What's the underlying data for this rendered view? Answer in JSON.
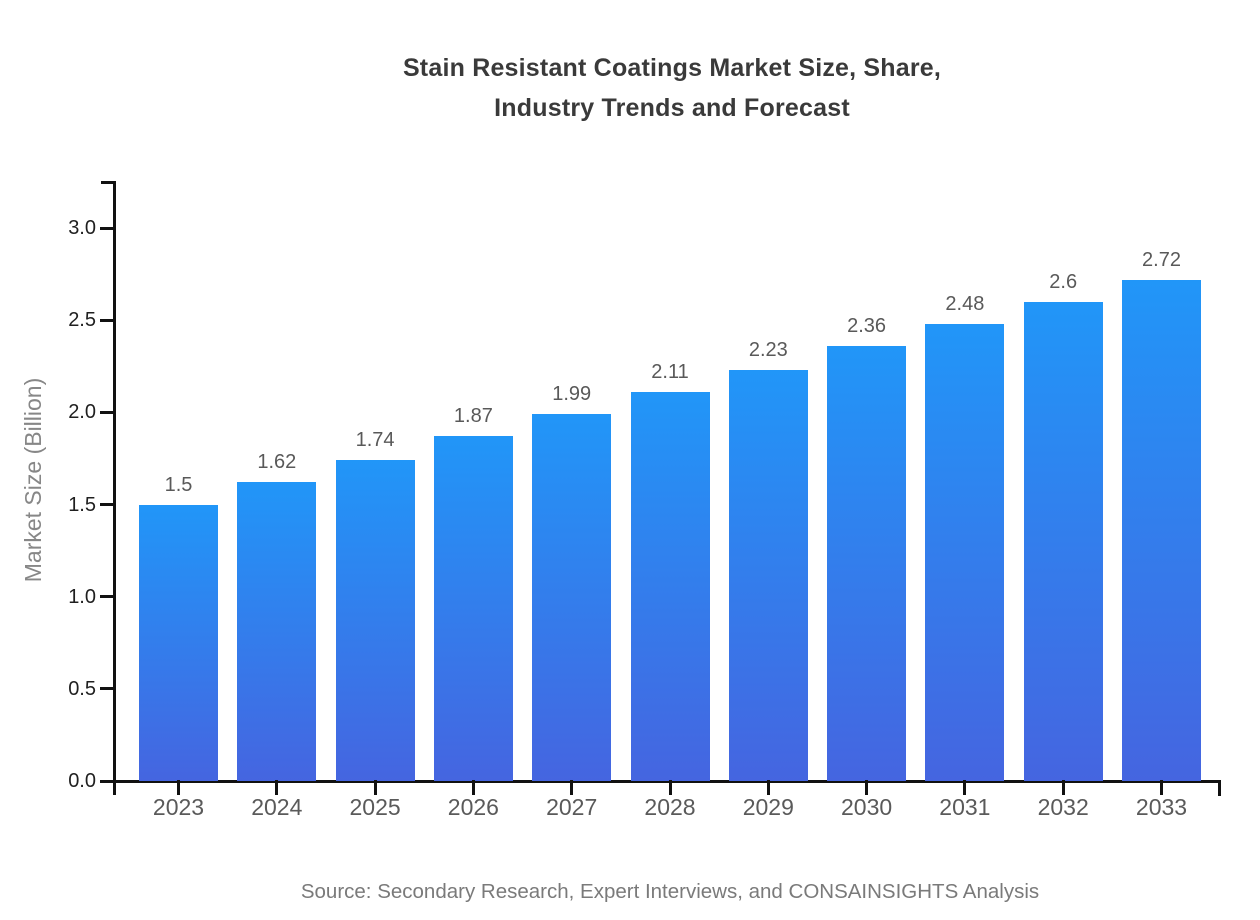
{
  "chart_data": {
    "type": "bar",
    "title": "Stain Resistant Coatings Market Size, Share,\nIndustry Trends and Forecast",
    "ylabel": "Market Size (Billion)",
    "xlabel": "",
    "categories": [
      "2023",
      "2024",
      "2025",
      "2026",
      "2027",
      "2028",
      "2029",
      "2030",
      "2031",
      "2032",
      "2033"
    ],
    "values": [
      1.5,
      1.62,
      1.74,
      1.87,
      1.99,
      2.11,
      2.23,
      2.36,
      2.48,
      2.6,
      2.72
    ],
    "value_labels": [
      "1.5",
      "1.62",
      "1.74",
      "1.87",
      "1.99",
      "2.11",
      "2.23",
      "2.36",
      "2.48",
      "2.6",
      "2.72"
    ],
    "ylim": [
      0,
      3.25
    ],
    "yticks": [
      0,
      0.5,
      1,
      1.5,
      2,
      2.5,
      3
    ],
    "ytick_labels": [
      "0.0",
      "0.5",
      "1.0",
      "1.5",
      "2.0",
      "2.5",
      "3.0"
    ],
    "grid": false,
    "legend_position": "none",
    "colors": {
      "bar_gradient_top": "#2196F8",
      "bar_gradient_bottom": "#4565E0",
      "axis": "#111111",
      "title_text": "#3a3a3a",
      "xtick_text": "#5a5a5a",
      "ytick_text": "#1f1f1f",
      "value_label_text": "#595959",
      "axis_label_text": "#878787",
      "source_text": "#7a7a7a",
      "background": "#ffffff"
    }
  },
  "footer": {
    "source": "Source: Secondary Research, Expert Interviews, and CONSAINSIGHTS Analysis"
  }
}
